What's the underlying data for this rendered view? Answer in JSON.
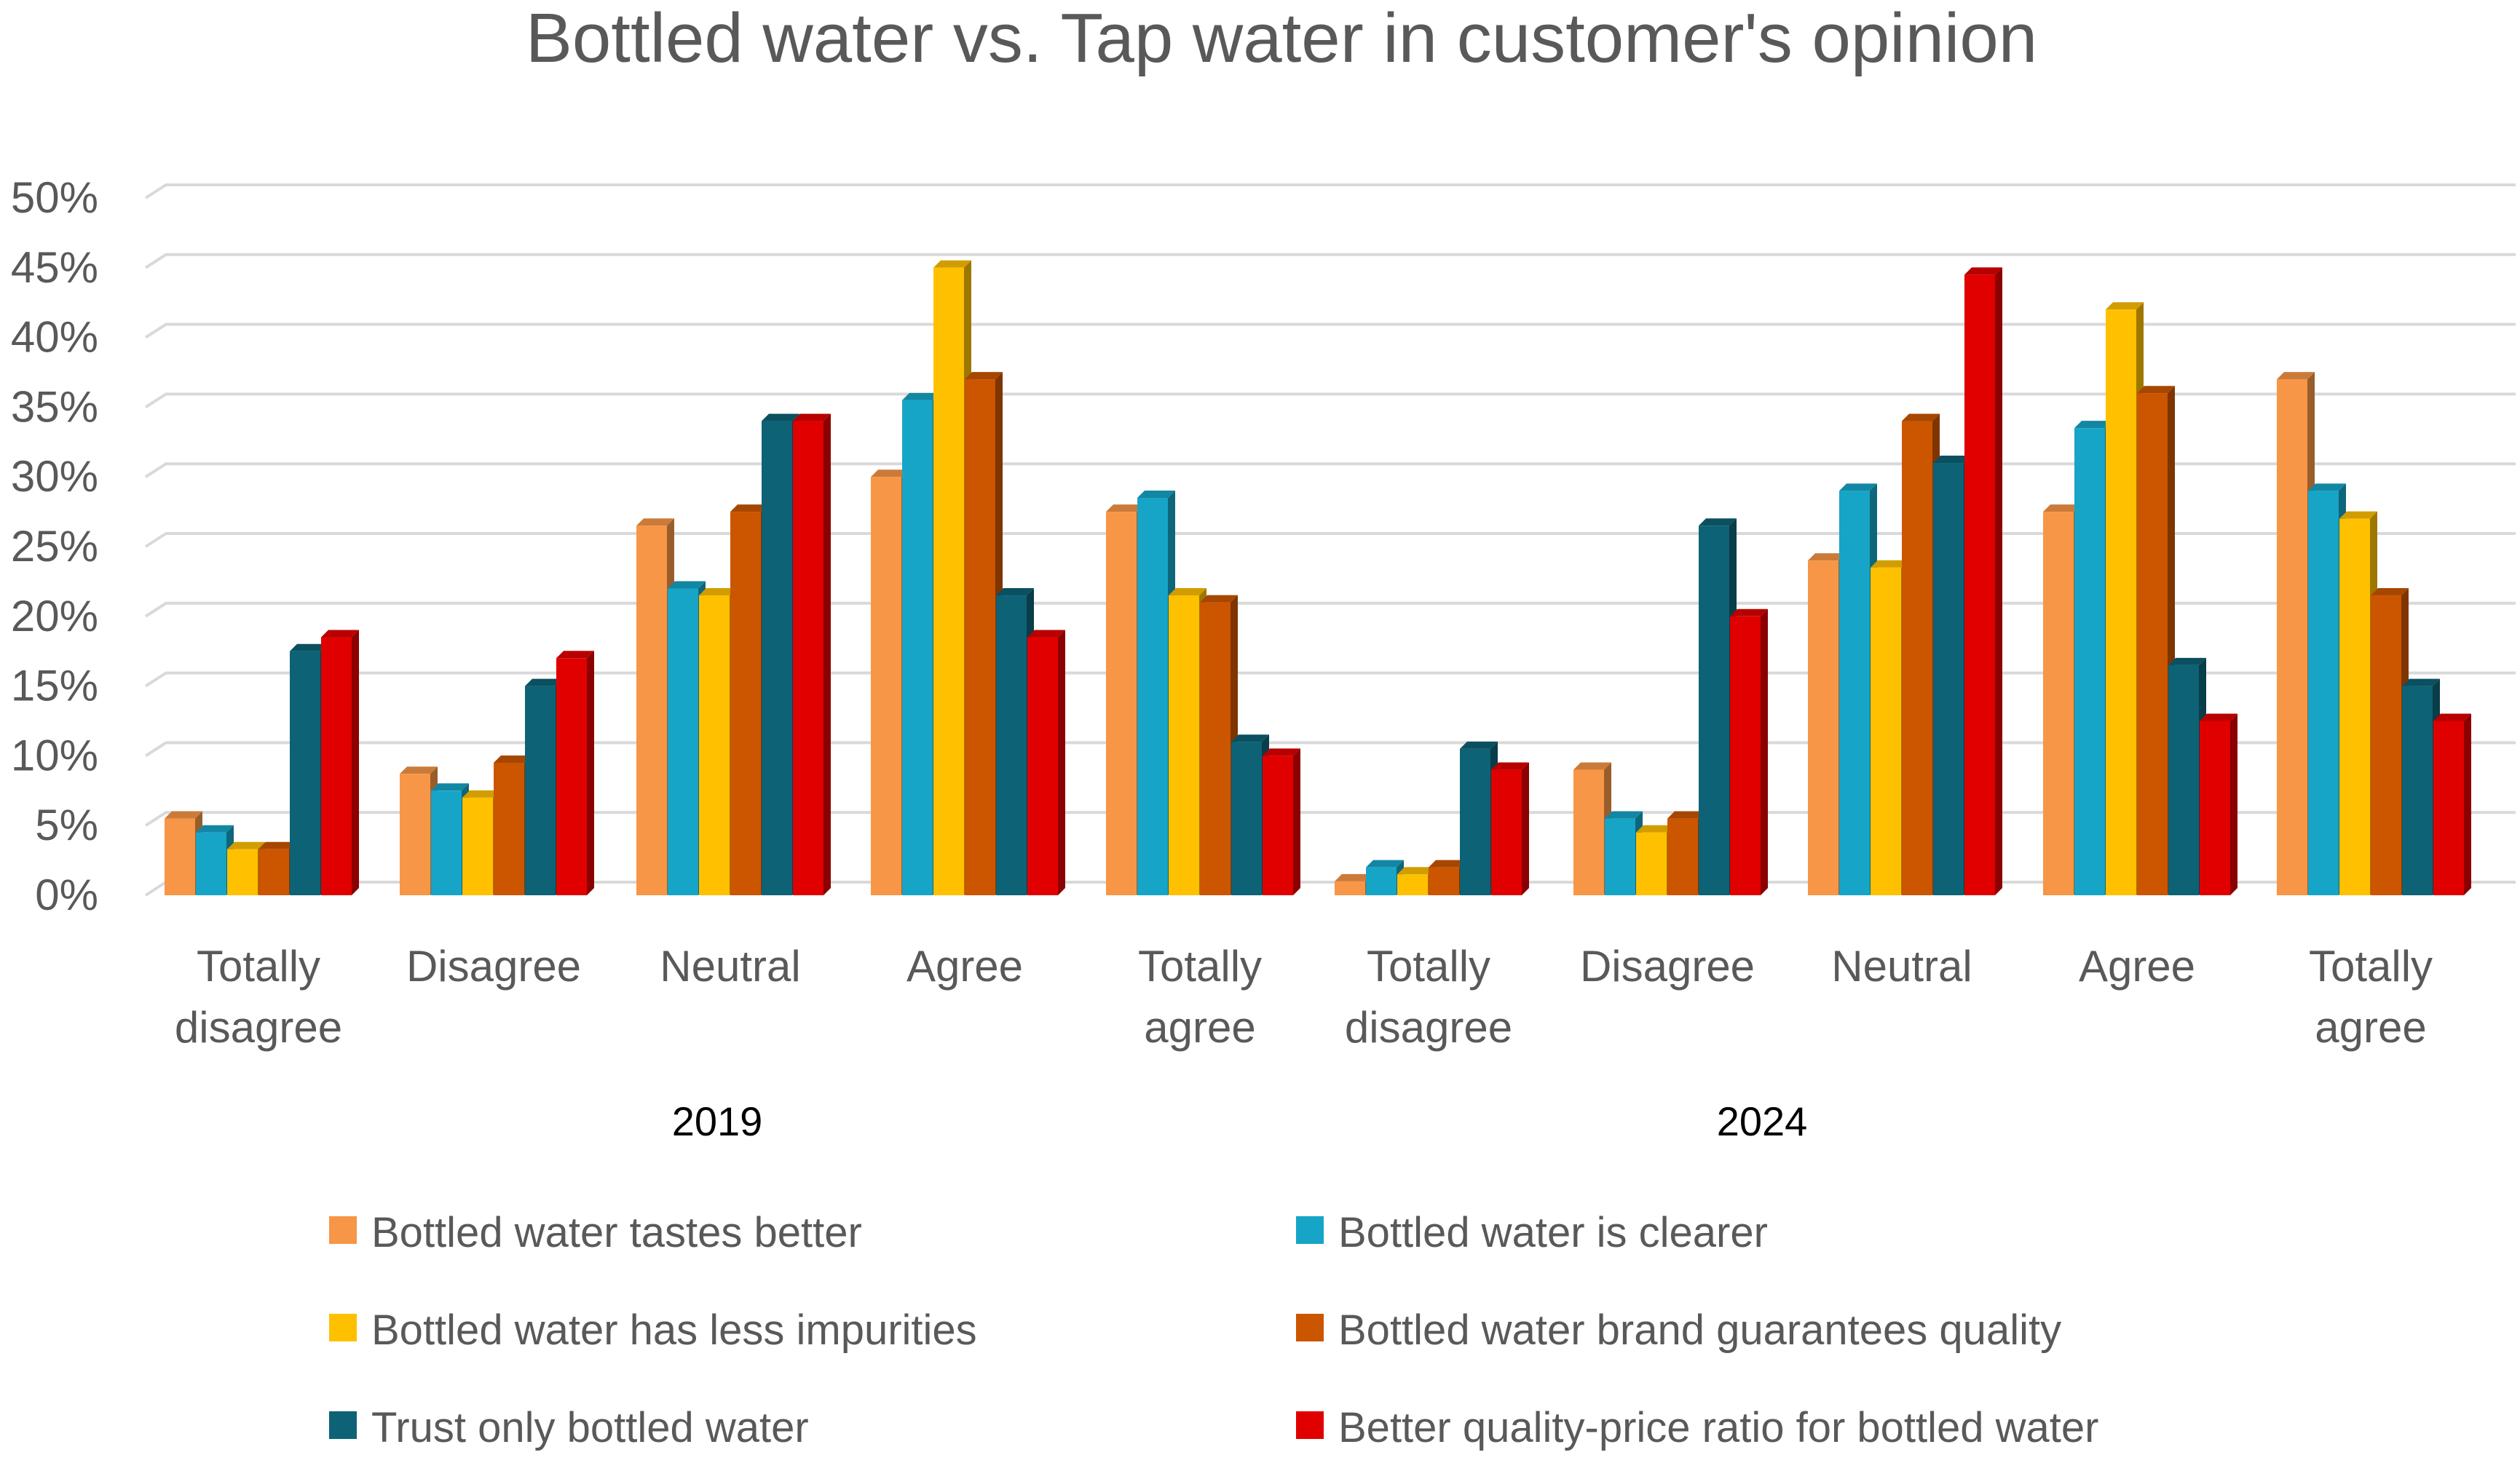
{
  "chart_data": {
    "type": "bar",
    "title": "Bottled water vs. Tap water in customer's opinion",
    "xlabel": "",
    "ylabel": "",
    "ylim": [
      0,
      50
    ],
    "grid": true,
    "legend_position": "bottom",
    "y_ticks": [
      "0%",
      "5%",
      "10%",
      "15%",
      "20%",
      "25%",
      "30%",
      "35%",
      "40%",
      "45%",
      "50%"
    ],
    "groups": [
      {
        "label": "2019",
        "categories": [
          "Totally disagree",
          "Disagree",
          "Neutral",
          "Agree",
          "Totally agree"
        ]
      },
      {
        "label": "2024",
        "categories": [
          "Totally disagree",
          "Disagree",
          "Neutral",
          "Agree",
          "Totally agree"
        ]
      }
    ],
    "category_lines": [
      [
        "Totally",
        "disagree"
      ],
      [
        "Disagree"
      ],
      [
        "Neutral"
      ],
      [
        "Agree"
      ],
      [
        "Totally",
        "agree"
      ],
      [
        "Totally",
        "disagree"
      ],
      [
        "Disagree"
      ],
      [
        "Neutral"
      ],
      [
        "Agree"
      ],
      [
        "Totally",
        "agree"
      ]
    ],
    "series": [
      {
        "name": "Bottled water tastes better",
        "color": "#F79646",
        "values": [
          5.5,
          8.7,
          26.5,
          30,
          27.5,
          1,
          9,
          24,
          27.5,
          37
        ]
      },
      {
        "name": "Bottled water is clearer",
        "color": "#16A5C7",
        "values": [
          4.5,
          7.5,
          22,
          35.5,
          28.5,
          2,
          5.5,
          29,
          33.5,
          29
        ]
      },
      {
        "name": "Bottled water has less impurities",
        "color": "#FFC000",
        "values": [
          3.3,
          7,
          21.5,
          45,
          21.5,
          1.5,
          4.5,
          23.5,
          42,
          27
        ]
      },
      {
        "name": "Bottled water brand guarantees quality",
        "color": "#CC5500",
        "values": [
          3.3,
          9.5,
          27.5,
          37,
          21,
          2,
          5.5,
          34,
          36,
          21.5
        ]
      },
      {
        "name": "Trust only bottled water",
        "color": "#0D6276",
        "values": [
          17.5,
          15,
          34,
          21.5,
          11,
          10.5,
          26.5,
          31,
          16.5,
          15
        ]
      },
      {
        "name": "Better quality-price ratio for bottled water",
        "color": "#E00000",
        "values": [
          18.5,
          17,
          34,
          18.5,
          10,
          9,
          20,
          44.5,
          12.5,
          12.5
        ]
      }
    ]
  }
}
